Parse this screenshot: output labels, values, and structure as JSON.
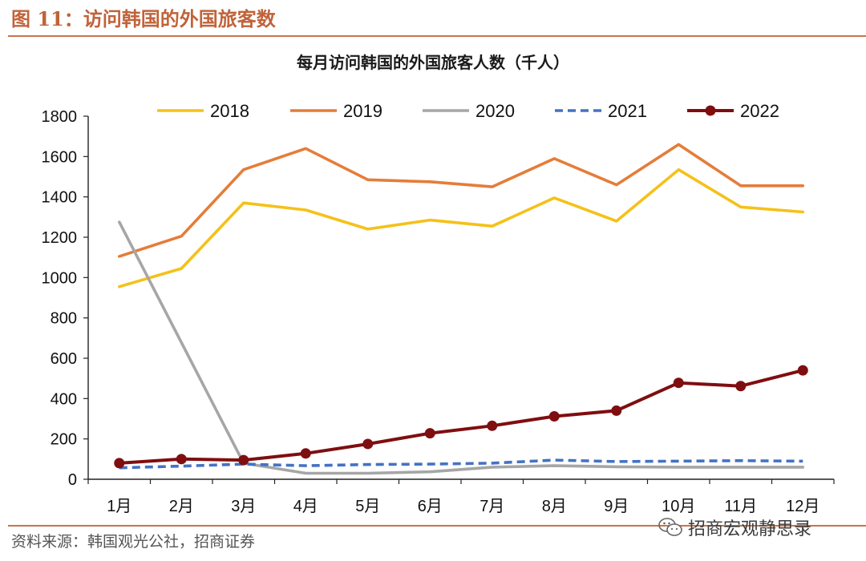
{
  "figure": {
    "title": "图 11：访问韩国的外国旅客数",
    "source": "资料来源：韩国观光公社，招商证券",
    "watermark_text": "招商宏观静思录",
    "accent_color": "#c8744a"
  },
  "chart_data": {
    "type": "line",
    "title": "每月访问韩国的外国旅客人数（千人）",
    "xlabel": "",
    "ylabel": "",
    "categories": [
      "1月",
      "2月",
      "3月",
      "4月",
      "5月",
      "6月",
      "7月",
      "8月",
      "9月",
      "10月",
      "11月",
      "12月"
    ],
    "ylim": [
      0,
      1800
    ],
    "yticks": [
      0,
      200,
      400,
      600,
      800,
      1000,
      1200,
      1400,
      1600,
      1800
    ],
    "ytick_labels": [
      "0",
      "200",
      "400",
      "600",
      "800",
      "1000",
      "1200",
      "1400",
      "1600",
      "1800"
    ],
    "grid": false,
    "legend_position": "top",
    "series": [
      {
        "name": "2018",
        "color": "#f5c119",
        "style": "solid",
        "markers": false,
        "values": [
          955,
          1045,
          1370,
          1335,
          1240,
          1285,
          1255,
          1395,
          1280,
          1535,
          1350,
          1325
        ]
      },
      {
        "name": "2019",
        "color": "#e47d39",
        "style": "solid",
        "markers": false,
        "values": [
          1105,
          1205,
          1535,
          1640,
          1485,
          1475,
          1450,
          1590,
          1460,
          1660,
          1455,
          1455
        ]
      },
      {
        "name": "2020",
        "color": "#a6a6a6",
        "style": "solid",
        "markers": false,
        "values": [
          1275,
          null,
          80,
          30,
          30,
          37,
          60,
          67,
          62,
          60,
          60,
          60
        ]
      },
      {
        "name": "2021",
        "color": "#4472c4",
        "style": "dashed",
        "markers": false,
        "values": [
          57,
          65,
          75,
          67,
          73,
          75,
          80,
          95,
          88,
          90,
          92,
          90
        ]
      },
      {
        "name": "2022",
        "color": "#7f0e10",
        "style": "solid",
        "markers": true,
        "values": [
          80,
          100,
          95,
          128,
          175,
          228,
          265,
          312,
          340,
          478,
          462,
          540
        ]
      }
    ]
  }
}
